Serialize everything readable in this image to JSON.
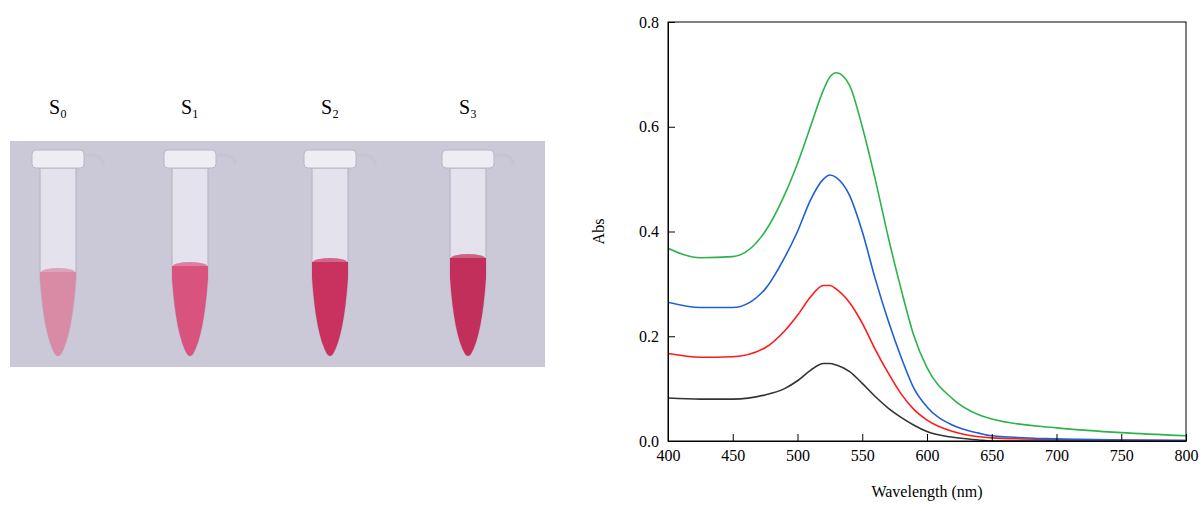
{
  "photo": {
    "labels": [
      "S₀",
      "S₁",
      "S₂",
      "S₃"
    ]
  },
  "chart_data": {
    "type": "line",
    "x_label": "Wavelength (nm)",
    "y_label": "Abs",
    "x": [
      400,
      425,
      450,
      475,
      490,
      500,
      510,
      520,
      525,
      530,
      540,
      550,
      560,
      570,
      580,
      590,
      600,
      620,
      640,
      650,
      700,
      750,
      800
    ],
    "series": [
      {
        "color": "#333333",
        "values": [
          0.082,
          0.08,
          0.08,
          0.088,
          0.1,
          0.115,
          0.135,
          0.148,
          0.148,
          0.145,
          0.133,
          0.11,
          0.085,
          0.063,
          0.045,
          0.03,
          0.018,
          0.007,
          0.002,
          0.0,
          0.0,
          0.0,
          0.0
        ]
      },
      {
        "color": "#ff1a1a",
        "values": [
          0.167,
          0.16,
          0.161,
          0.178,
          0.21,
          0.24,
          0.275,
          0.297,
          0.297,
          0.29,
          0.265,
          0.225,
          0.175,
          0.13,
          0.09,
          0.06,
          0.04,
          0.018,
          0.008,
          0.006,
          0.003,
          0.002,
          0.001
        ]
      },
      {
        "color": "#1f5fd6",
        "values": [
          0.265,
          0.255,
          0.255,
          0.29,
          0.35,
          0.4,
          0.46,
          0.5,
          0.508,
          0.503,
          0.47,
          0.4,
          0.31,
          0.23,
          0.16,
          0.1,
          0.065,
          0.03,
          0.015,
          0.01,
          0.004,
          0.002,
          0.001
        ]
      },
      {
        "color": "#2cb34a",
        "values": [
          0.368,
          0.35,
          0.352,
          0.4,
          0.47,
          0.53,
          0.6,
          0.67,
          0.695,
          0.703,
          0.68,
          0.6,
          0.5,
          0.39,
          0.29,
          0.2,
          0.14,
          0.08,
          0.05,
          0.042,
          0.025,
          0.016,
          0.01
        ]
      }
    ],
    "xlim": [
      400,
      800
    ],
    "xticks": [
      400,
      450,
      500,
      550,
      600,
      650,
      700,
      750,
      800
    ],
    "ylim": [
      0,
      0.8
    ],
    "yticks": [
      {
        "value": 0,
        "label": "0.0"
      },
      {
        "value": 0.2,
        "label": "0.2"
      },
      {
        "value": 0.4,
        "label": "0.4"
      },
      {
        "value": 0.6,
        "label": "0.6"
      },
      {
        "value": 0.8,
        "label": "0.8"
      }
    ],
    "grid": false
  }
}
